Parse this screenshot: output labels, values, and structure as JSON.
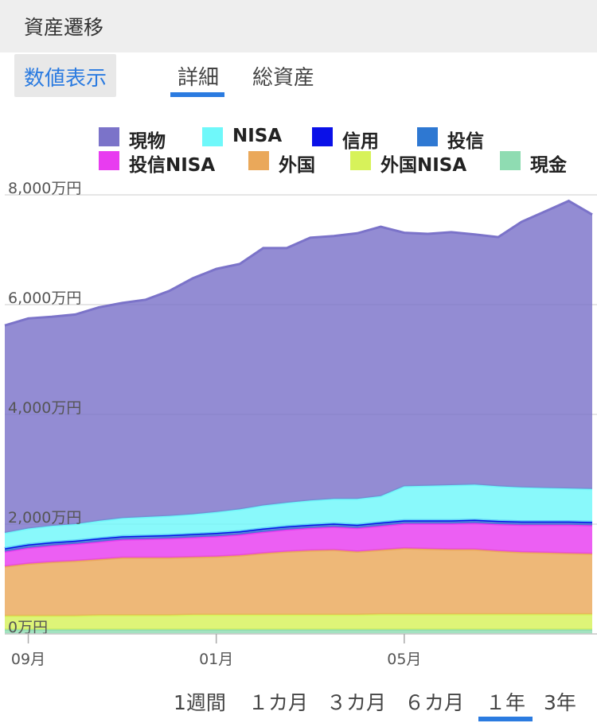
{
  "header": {
    "title": "資産遷移"
  },
  "toggle": {
    "label": "数値表示"
  },
  "tabs": [
    {
      "label": "詳細",
      "active": true
    },
    {
      "label": "総資産",
      "active": false
    }
  ],
  "legend": [
    {
      "label": "現物",
      "color": "#7b73c9"
    },
    {
      "label": "NISA",
      "color": "#6ff8fa"
    },
    {
      "label": "信用",
      "color": "#0a10e8"
    },
    {
      "label": "投信",
      "color": "#2e78d2"
    },
    {
      "label": "投信NISA",
      "color": "#e83cf0"
    },
    {
      "label": "外国",
      "color": "#eaa85a"
    },
    {
      "label": "外国NISA",
      "color": "#d7f25a"
    },
    {
      "label": "現金",
      "color": "#8fdcb2"
    }
  ],
  "ranges": [
    {
      "label": "1週間",
      "active": false
    },
    {
      "label": "１カ月",
      "active": false
    },
    {
      "label": "３カ月",
      "active": false
    },
    {
      "label": "６カ月",
      "active": false
    },
    {
      "label": "１年",
      "active": true
    },
    {
      "label": "3年",
      "active": false
    }
  ],
  "chart_data": {
    "type": "area",
    "stacked": true,
    "x_ticks": [
      "09月",
      "01月",
      "05月"
    ],
    "y_ticks": [
      "0万円",
      "2,000万円",
      "4,000万円",
      "6,000万円",
      "8,000万円"
    ],
    "ylim": [
      0,
      8000
    ],
    "y_unit": "万円",
    "grid": true,
    "legend_position": "top",
    "x": [
      "08-19",
      "09-01",
      "09-15",
      "10-01",
      "10-15",
      "11-01",
      "11-15",
      "12-01",
      "12-15",
      "01-01",
      "01-15",
      "02-01",
      "02-15",
      "03-01",
      "03-15",
      "04-01",
      "04-15",
      "05-01",
      "05-15",
      "06-01",
      "06-15",
      "07-01",
      "07-15",
      "08-01",
      "08-10",
      "08-15"
    ],
    "series": [
      {
        "name": "現金",
        "values": [
          80,
          80,
          80,
          80,
          80,
          80,
          80,
          80,
          80,
          80,
          80,
          80,
          80,
          80,
          80,
          80,
          80,
          80,
          80,
          80,
          80,
          80,
          80,
          80,
          80,
          80
        ]
      },
      {
        "name": "外国NISA",
        "values": [
          250,
          250,
          250,
          250,
          260,
          260,
          260,
          260,
          270,
          270,
          270,
          270,
          270,
          270,
          270,
          270,
          280,
          280,
          280,
          280,
          280,
          280,
          280,
          280,
          280,
          280
        ]
      },
      {
        "name": "外国",
        "values": [
          900,
          950,
          980,
          1000,
          1020,
          1050,
          1050,
          1050,
          1050,
          1060,
          1080,
          1120,
          1150,
          1170,
          1180,
          1150,
          1170,
          1200,
          1190,
          1180,
          1180,
          1150,
          1130,
          1120,
          1110,
          1100
        ]
      },
      {
        "name": "投信NISA",
        "values": [
          270,
          290,
          300,
          310,
          320,
          330,
          340,
          350,
          360,
          370,
          380,
          390,
          400,
          410,
          420,
          430,
          440,
          450,
          460,
          470,
          480,
          490,
          500,
          510,
          520,
          520
        ]
      },
      {
        "name": "投信",
        "values": [
          60,
          60,
          60,
          60,
          60,
          60,
          60,
          60,
          60,
          60,
          60,
          60,
          60,
          60,
          60,
          60,
          60,
          60,
          60,
          60,
          60,
          60,
          60,
          60,
          60,
          60
        ]
      },
      {
        "name": "信用",
        "values": [
          0,
          0,
          0,
          0,
          0,
          0,
          0,
          0,
          0,
          0,
          0,
          0,
          0,
          0,
          0,
          0,
          0,
          0,
          0,
          0,
          0,
          0,
          0,
          0,
          0,
          0
        ]
      },
      {
        "name": "NISA",
        "values": [
          280,
          290,
          300,
          300,
          320,
          330,
          340,
          350,
          360,
          380,
          400,
          420,
          430,
          440,
          450,
          470,
          480,
          620,
          630,
          640,
          640,
          630,
          620,
          610,
          600,
          600
        ]
      },
      {
        "name": "現物",
        "values": [
          3780,
          3830,
          3810,
          3820,
          3890,
          3920,
          3960,
          4100,
          4300,
          4430,
          4470,
          4690,
          4640,
          4790,
          4790,
          4840,
          4910,
          4620,
          4590,
          4610,
          4560,
          4540,
          4840,
          5040,
          5240,
          5000
        ]
      }
    ]
  }
}
